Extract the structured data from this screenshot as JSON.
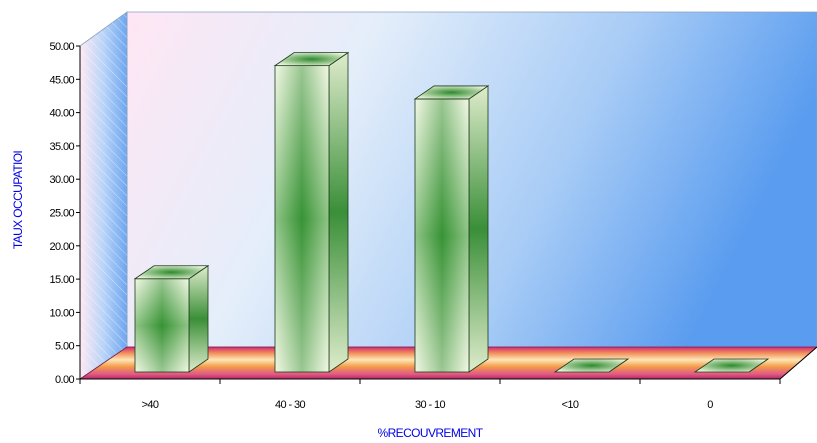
{
  "chart_data": {
    "type": "bar",
    "title": "",
    "xlabel": "%RECOUVREMENT",
    "ylabel": "TAUX OCCUPATIOI",
    "categories": [
      ">40",
      "40 - 30",
      "30 - 10",
      "<10",
      "0"
    ],
    "values": [
      14,
      46,
      41,
      0,
      0
    ],
    "ylim": [
      0,
      50
    ],
    "y_ticks": [
      "0.00",
      "5.00",
      "10.00",
      "15.00",
      "20.00",
      "25.00",
      "30.00",
      "35.00",
      "40.00",
      "45.00",
      "50.00"
    ],
    "grid": false,
    "legend": "none",
    "style": "3d",
    "colors": {
      "bar_light": "#f0f6e0",
      "bar_dark": "#2e8a2e",
      "wall_blue": "#6aa8f2",
      "floor_orange": "#f6b04a",
      "floor_magenta": "#c0306a",
      "axis_title": "#0000e6"
    }
  }
}
